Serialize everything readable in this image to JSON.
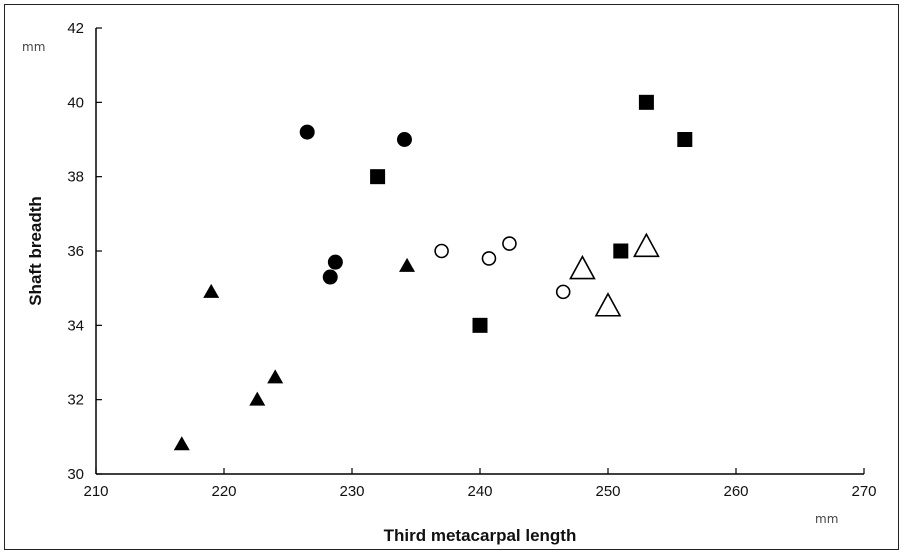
{
  "chart_data": {
    "type": "scatter",
    "title": "",
    "xlabel": "Third metacarpal length",
    "ylabel": "Shaft breadth",
    "x_unit": "mm",
    "y_unit": "mm",
    "xlim": [
      210,
      270
    ],
    "ylim": [
      30,
      42
    ],
    "x_ticks": [
      "210",
      "220",
      "230",
      "240",
      "250",
      "260",
      "270"
    ],
    "y_ticks": [
      "30",
      "32",
      "34",
      "36",
      "38",
      "40",
      "42"
    ],
    "grid": false,
    "legend": "none",
    "series": [
      {
        "marker": "filled-triangle",
        "color": "#000000",
        "points": [
          [
            216.7,
            30.8
          ],
          [
            219.0,
            34.9
          ],
          [
            222.6,
            32.0
          ],
          [
            224.0,
            32.6
          ],
          [
            234.3,
            35.6
          ]
        ]
      },
      {
        "marker": "filled-circle",
        "color": "#000000",
        "points": [
          [
            226.5,
            39.2
          ],
          [
            228.3,
            35.3
          ],
          [
            228.7,
            35.7
          ],
          [
            234.1,
            39.0
          ]
        ]
      },
      {
        "marker": "filled-square",
        "color": "#000000",
        "points": [
          [
            232.0,
            38.0
          ],
          [
            240.0,
            34.0
          ],
          [
            251.0,
            36.0
          ],
          [
            253.0,
            40.0
          ],
          [
            256.0,
            39.0
          ]
        ]
      },
      {
        "marker": "open-circle",
        "color": "#000000",
        "points": [
          [
            237.0,
            36.0
          ],
          [
            240.7,
            35.8
          ],
          [
            242.3,
            36.2
          ],
          [
            246.5,
            34.9
          ]
        ]
      },
      {
        "marker": "open-triangle",
        "color": "#000000",
        "points": [
          [
            248.0,
            35.5
          ],
          [
            250.0,
            34.5
          ],
          [
            253.0,
            36.1
          ]
        ]
      }
    ]
  }
}
